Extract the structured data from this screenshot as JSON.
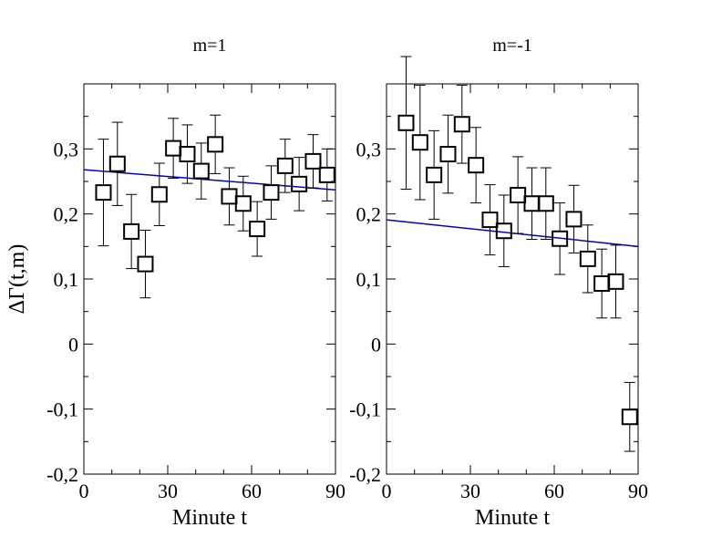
{
  "chart_data": [
    {
      "type": "scatter",
      "title": "m=1",
      "xlabel": "Minute t",
      "ylabel": "ΔΓ(t,m)",
      "xlim": [
        0,
        90
      ],
      "ylim": [
        -0.2,
        0.4
      ],
      "xticks": [
        {
          "value": 0,
          "label": "0"
        },
        {
          "value": 30,
          "label": "30"
        },
        {
          "value": 60,
          "label": "60"
        },
        {
          "value": 90,
          "label": "90"
        }
      ],
      "yticks": [
        {
          "value": -0.2,
          "label": "-0,2"
        },
        {
          "value": -0.1,
          "label": "-0,1"
        },
        {
          "value": 0,
          "label": "0"
        },
        {
          "value": 0.1,
          "label": "0,1"
        },
        {
          "value": 0.2,
          "label": "0,2"
        },
        {
          "value": 0.3,
          "label": "0,3"
        }
      ],
      "series": [
        {
          "name": "data",
          "points": [
            {
              "x": 7,
              "y": 0.233,
              "err": 0.082
            },
            {
              "x": 12,
              "y": 0.277,
              "err": 0.064
            },
            {
              "x": 17,
              "y": 0.173,
              "err": 0.057
            },
            {
              "x": 22,
              "y": 0.123,
              "err": 0.052
            },
            {
              "x": 27,
              "y": 0.23,
              "err": 0.048
            },
            {
              "x": 32,
              "y": 0.301,
              "err": 0.046
            },
            {
              "x": 37,
              "y": 0.292,
              "err": 0.045
            },
            {
              "x": 42,
              "y": 0.266,
              "err": 0.043
            },
            {
              "x": 47,
              "y": 0.307,
              "err": 0.045
            },
            {
              "x": 52,
              "y": 0.227,
              "err": 0.044
            },
            {
              "x": 57,
              "y": 0.216,
              "err": 0.042
            },
            {
              "x": 62,
              "y": 0.177,
              "err": 0.042
            },
            {
              "x": 67,
              "y": 0.233,
              "err": 0.041
            },
            {
              "x": 72,
              "y": 0.274,
              "err": 0.041
            },
            {
              "x": 77,
              "y": 0.246,
              "err": 0.041
            },
            {
              "x": 82,
              "y": 0.281,
              "err": 0.041
            },
            {
              "x": 87,
              "y": 0.26,
              "err": 0.04
            }
          ]
        }
      ],
      "fit": {
        "x": [
          0,
          90
        ],
        "y": [
          0.268,
          0.237
        ],
        "color": "#0000cc"
      }
    },
    {
      "type": "scatter",
      "title": "m=-1",
      "xlabel": "Minute t",
      "ylabel": "",
      "xlim": [
        0,
        90
      ],
      "ylim": [
        -0.2,
        0.4
      ],
      "xticks": [
        {
          "value": 0,
          "label": "0"
        },
        {
          "value": 30,
          "label": "30"
        },
        {
          "value": 60,
          "label": "60"
        },
        {
          "value": 90,
          "label": "90"
        }
      ],
      "yticks": [
        {
          "value": -0.2,
          "label": "-0,2"
        },
        {
          "value": -0.1,
          "label": "-0,1"
        },
        {
          "value": 0,
          "label": "0"
        },
        {
          "value": 0.1,
          "label": "0,1"
        },
        {
          "value": 0.2,
          "label": "0,2"
        },
        {
          "value": 0.3,
          "label": "0,3"
        }
      ],
      "series": [
        {
          "name": "data",
          "points": [
            {
              "x": 7,
              "y": 0.34,
              "err": 0.102
            },
            {
              "x": 12,
              "y": 0.31,
              "err": 0.088
            },
            {
              "x": 17,
              "y": 0.26,
              "err": 0.068
            },
            {
              "x": 22,
              "y": 0.292,
              "err": 0.06
            },
            {
              "x": 27,
              "y": 0.338,
              "err": 0.06
            },
            {
              "x": 32,
              "y": 0.275,
              "err": 0.058
            },
            {
              "x": 37,
              "y": 0.191,
              "err": 0.054
            },
            {
              "x": 42,
              "y": 0.174,
              "err": 0.055
            },
            {
              "x": 47,
              "y": 0.229,
              "err": 0.059
            },
            {
              "x": 52,
              "y": 0.216,
              "err": 0.055
            },
            {
              "x": 57,
              "y": 0.216,
              "err": 0.055
            },
            {
              "x": 62,
              "y": 0.162,
              "err": 0.055
            },
            {
              "x": 67,
              "y": 0.192,
              "err": 0.052
            },
            {
              "x": 72,
              "y": 0.131,
              "err": 0.052
            },
            {
              "x": 77,
              "y": 0.093,
              "err": 0.053
            },
            {
              "x": 82,
              "y": 0.096,
              "err": 0.056
            },
            {
              "x": 87,
              "y": -0.112,
              "err": 0.053
            }
          ]
        }
      ],
      "fit": {
        "x": [
          0,
          90
        ],
        "y": [
          0.191,
          0.15
        ],
        "color": "#0000cc"
      }
    }
  ]
}
